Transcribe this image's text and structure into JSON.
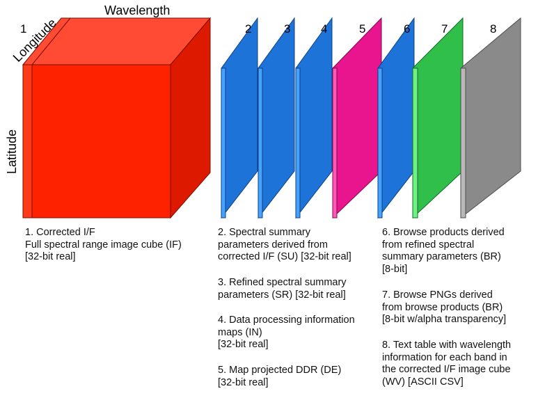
{
  "axes": {
    "wavelength": "Wavelength",
    "longitude": "Longitude",
    "latitude": "Latitude"
  },
  "colors": {
    "cube_front": "#fe2200",
    "cube_top": "#ff4a34",
    "cube_side": "#dd1a00",
    "blue": "#1e73d8",
    "blue_light": "#45a3ff",
    "magenta": "#e8158f",
    "magenta_light": "#ff58b8",
    "green": "#2fbf4a",
    "green_light": "#6fef84",
    "gray": "#8a8a8a",
    "gray_light": "#b8b8b8"
  },
  "products": [
    {
      "number": "1",
      "caption": "1. Corrected I/F\nFull spectral range image cube (IF)\n[32-bit real]",
      "color": "red"
    },
    {
      "number": "2",
      "caption": "2. Spectral summary\nparameters derived from\ncorrected I/F (SU) [32-bit real]",
      "color": "blue"
    },
    {
      "number": "3",
      "caption": "3. Refined spectral summary\nparameters (SR) [32-bit real]",
      "color": "blue"
    },
    {
      "number": "4",
      "caption": "4. Data processing information\nmaps (IN)\n[32-bit real]",
      "color": "blue"
    },
    {
      "number": "5",
      "caption": "5. Map projected DDR (DE)\n[32-bit real]",
      "color": "magenta"
    },
    {
      "number": "6",
      "caption": "6. Browse products derived\nfrom refined spectral\nsummary parameters (BR)\n[8-bit]",
      "color": "blue"
    },
    {
      "number": "7",
      "caption": "7. Browse PNGs derived\nfrom browse products (BR)\n[8-bit w/alpha transparency]",
      "color": "green"
    },
    {
      "number": "8",
      "caption": "8. Text table with wavelength\ninformation for each band in\nthe corrected I/F image cube\n(WV) [ASCII CSV]",
      "color": "gray"
    }
  ]
}
